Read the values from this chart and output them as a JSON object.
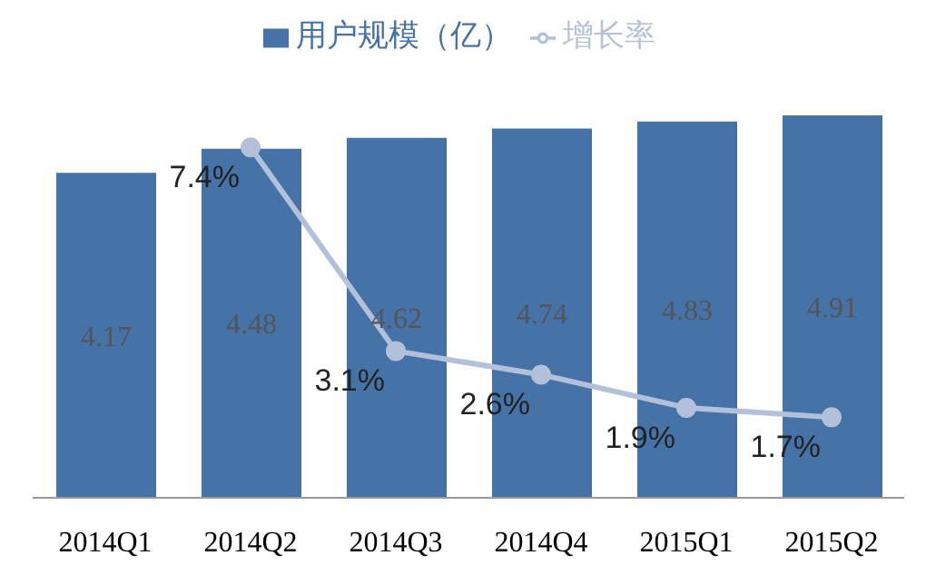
{
  "chart_data": {
    "type": "bar",
    "categories": [
      "2014Q1",
      "2014Q2",
      "2014Q3",
      "2014Q4",
      "2015Q1",
      "2015Q2"
    ],
    "series": [
      {
        "name": "用户规模（亿）",
        "color": "#4572a7",
        "values": [
          4.17,
          4.48,
          4.62,
          4.74,
          4.83,
          4.91
        ],
        "data_labels": true
      },
      {
        "name": "增长率",
        "type": "line",
        "axis": "y2",
        "color": "#b3c0d9",
        "marker": "circle",
        "values": [
          null,
          7.4,
          3.1,
          2.6,
          1.9,
          1.7
        ],
        "value_labels": [
          null,
          "7.4%",
          "3.1%",
          "2.6%",
          "1.9%",
          "1.7%"
        ]
      }
    ],
    "legend": "top"
  }
}
